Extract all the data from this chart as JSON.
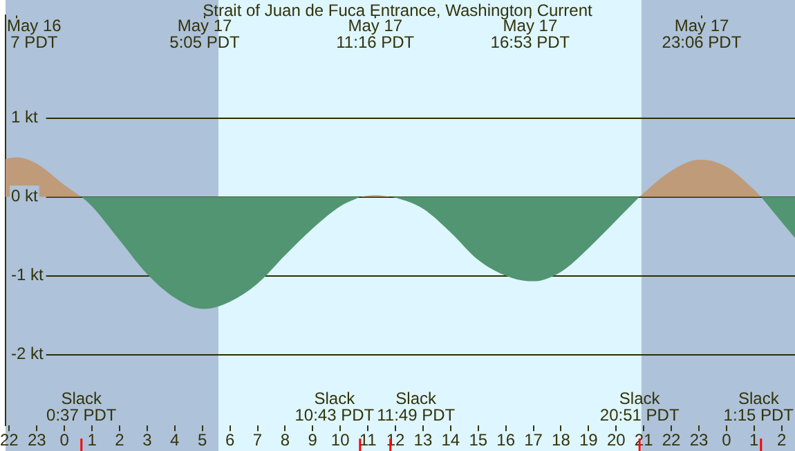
{
  "chart_data": {
    "type": "area",
    "title": "Strait of Juan de Fuca Entrance, Washington Current",
    "x": [
      "--05-16T21:52",
      "--05-16T22:16",
      "--05-16T23:00",
      "--05-17T00:00",
      "--05-17T00:37",
      "--05-17T01:00",
      "--05-17T02:00",
      "--05-17T03:00",
      "--05-17T04:00",
      "--05-17T05:00",
      "--05-17T05:05",
      "--05-17T06:00",
      "--05-17T07:00",
      "--05-17T08:00",
      "--05-17T09:00",
      "--05-17T10:00",
      "--05-17T10:43",
      "--05-17T11:16",
      "--05-17T11:49",
      "--05-17T12:00",
      "--05-17T13:00",
      "--05-17T14:00",
      "--05-17T15:00",
      "--05-17T16:00",
      "--05-17T16:53",
      "--05-17T17:00",
      "--05-17T18:00",
      "--05-17T19:00",
      "--05-17T20:00",
      "--05-17T20:51",
      "--05-17T21:00",
      "--05-17T22:00",
      "--05-17T23:00",
      "--05-17T23:06",
      "--05-18T00:00",
      "--05-18T01:00",
      "--05-18T01:15",
      "--05-18T02:00",
      "--05-18T02:29"
    ],
    "series": [
      {
        "color": "#bf9b7a",
        "values": [
          0.48,
          0.5,
          0.42,
          0.15,
          0,
          null,
          null,
          null,
          null,
          null,
          null,
          null,
          null,
          null,
          null,
          null,
          0,
          0.02,
          0,
          null,
          null,
          null,
          null,
          null,
          null,
          null,
          null,
          null,
          null,
          0,
          0.05,
          0.33,
          0.47,
          0.47,
          0.38,
          0.09,
          0,
          null,
          null
        ]
      },
      {
        "color": "#529572",
        "values": [
          null,
          null,
          null,
          null,
          0,
          -0.12,
          -0.55,
          -0.98,
          -1.28,
          -1.42,
          -1.42,
          -1.33,
          -1.1,
          -0.74,
          -0.4,
          -0.12,
          0,
          null,
          0,
          -0.01,
          -0.15,
          -0.45,
          -0.8,
          -1.0,
          -1.07,
          -1.07,
          -0.95,
          -0.65,
          -0.3,
          0,
          null,
          null,
          null,
          null,
          null,
          null,
          0,
          -0.32,
          -0.52
        ]
      }
    ],
    "xlim": [
      "--05-16T21:52",
      "--05-18T02:29"
    ],
    "xticks": [
      {
        "value": "--05-16T22:00",
        "label": "22"
      },
      {
        "value": "--05-16T23:00",
        "label": "23"
      },
      {
        "value": "--05-17T00:00",
        "label": "0"
      },
      {
        "value": "--05-17T01:00",
        "label": "1"
      },
      {
        "value": "--05-17T02:00",
        "label": "2"
      },
      {
        "value": "--05-17T03:00",
        "label": "3"
      },
      {
        "value": "--05-17T04:00",
        "label": "4"
      },
      {
        "value": "--05-17T05:00",
        "label": "5"
      },
      {
        "value": "--05-17T06:00",
        "label": "6"
      },
      {
        "value": "--05-17T07:00",
        "label": "7"
      },
      {
        "value": "--05-17T08:00",
        "label": "8"
      },
      {
        "value": "--05-17T09:00",
        "label": "9"
      },
      {
        "value": "--05-17T10:00",
        "label": "10"
      },
      {
        "value": "--05-17T11:00",
        "label": "11"
      },
      {
        "value": "--05-17T12:00",
        "label": "12"
      },
      {
        "value": "--05-17T13:00",
        "label": "13"
      },
      {
        "value": "--05-17T14:00",
        "label": "14"
      },
      {
        "value": "--05-17T15:00",
        "label": "15"
      },
      {
        "value": "--05-17T16:00",
        "label": "16"
      },
      {
        "value": "--05-17T17:00",
        "label": "17"
      },
      {
        "value": "--05-17T18:00",
        "label": "18"
      },
      {
        "value": "--05-17T19:00",
        "label": "19"
      },
      {
        "value": "--05-17T20:00",
        "label": "20"
      },
      {
        "value": "--05-17T21:00",
        "label": "21"
      },
      {
        "value": "--05-17T22:00",
        "label": "22"
      },
      {
        "value": "--05-17T23:00",
        "label": "23"
      },
      {
        "value": "--05-18T00:00",
        "label": "0"
      },
      {
        "value": "--05-18T01:00",
        "label": "1"
      },
      {
        "value": "--05-18T02:00",
        "label": "2"
      }
    ],
    "ylim": [
      -2.9,
      2.3
    ],
    "yticks": [
      {
        "value": -2,
        "label": "-2 kt"
      },
      {
        "value": -1,
        "label": "-1 kt"
      },
      {
        "value": 0,
        "label": "0 kt"
      },
      {
        "value": 1,
        "label": "1 kt"
      }
    ],
    "grid": "y",
    "legend": false,
    "marker": "none",
    "bands": [
      {
        "axis": "x",
        "from": "--05-16T21:52",
        "to": "--05-17T05:35",
        "color": "#aec2d9"
      },
      {
        "axis": "x",
        "from": "--05-17T05:35",
        "to": "--05-17T20:55",
        "color": "#def6ff"
      },
      {
        "axis": "x",
        "from": "--05-17T20:55",
        "to": "--05-18T02:29",
        "color": "#aec2d9"
      }
    ],
    "ref_lines": [
      {
        "axis": "x",
        "value": "--05-17T00:37",
        "label": "Slack\n0:37 PDT",
        "color": "#ff0000"
      },
      {
        "axis": "x",
        "value": "--05-17T10:43",
        "label": "Slack\n10:43 PDT",
        "color": "#ff0000"
      },
      {
        "axis": "x",
        "value": "--05-17T11:49",
        "label": "Slack\n11:49 PDT",
        "color": "#ff0000"
      },
      {
        "axis": "x",
        "value": "--05-17T20:51",
        "label": "Slack\n20:51 PDT",
        "color": "#ff0000"
      },
      {
        "axis": "x",
        "value": "--05-18T01:15",
        "label": "Slack\n1:15 PDT",
        "color": "#ff0000"
      },
      {
        "axis": "x",
        "value": "--05-16T22:16",
        "label": "May 16\n7 PDT"
      },
      {
        "axis": "x",
        "value": "--05-17T05:05",
        "label": "May 17\n5:05 PDT"
      },
      {
        "axis": "x",
        "value": "--05-17T11:16",
        "label": "May 17\n11:16 PDT"
      },
      {
        "axis": "x",
        "value": "--05-17T16:53",
        "label": "May 17\n16:53 PDT"
      },
      {
        "axis": "x",
        "value": "--05-17T23:06",
        "label": "May 17\n23:06 PDT"
      }
    ]
  }
}
